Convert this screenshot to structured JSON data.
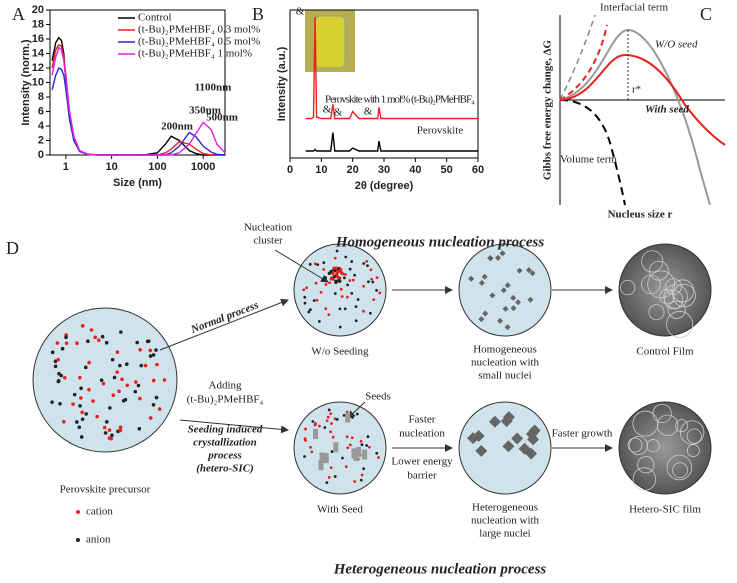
{
  "chart_data": [
    {
      "type": "line",
      "panel": "A",
      "xlabel": "Size (nm)",
      "ylabel": "Intensity (norm.)",
      "log_x": true,
      "x": [
        0.5,
        0.6,
        0.7,
        0.8,
        0.9,
        1,
        1.2,
        1.5,
        2,
        3,
        5,
        10,
        50,
        100,
        150,
        200,
        300,
        500,
        700,
        1000,
        1500,
        2000,
        3000
      ],
      "series": [
        {
          "name": "Control",
          "color": "#000000",
          "values": [
            13,
            15.5,
            16.2,
            15.8,
            14,
            10,
            5,
            2,
            0.5,
            0.1,
            0,
            0,
            0,
            0.3,
            1.5,
            2.6,
            2,
            0.6,
            0.2,
            0,
            0,
            0,
            0
          ]
        },
        {
          "name": "(t-Bu)₂PMeHBF₄ 0.3 mol%",
          "color": "#e8201e",
          "values": [
            12,
            14.5,
            15.2,
            15,
            13.5,
            11,
            6,
            2.5,
            0.6,
            0.1,
            0,
            0,
            0,
            0,
            0.3,
            0.8,
            1.8,
            1.5,
            0.8,
            0.2,
            0,
            0,
            0
          ]
        },
        {
          "name": "(t-Bu)₂PMeHBF₄ 0.5 mol%",
          "color": "#2a2ad8",
          "values": [
            9,
            11,
            12,
            11.8,
            11,
            9,
            5,
            2,
            0.5,
            0.1,
            0,
            0,
            0,
            0,
            0,
            0.3,
            1.2,
            3.1,
            2.5,
            1.2,
            0.4,
            0.1,
            0
          ]
        },
        {
          "name": "(t-Bu)₂PMeHBF₄ 1 mol%",
          "color": "#e020e0",
          "values": [
            11,
            13.5,
            14.8,
            14.5,
            13,
            10.5,
            6,
            2.5,
            0.6,
            0.1,
            0,
            0,
            0,
            0,
            0,
            0,
            0.3,
            1.5,
            3,
            4.5,
            3.5,
            1.5,
            0.3
          ]
        }
      ],
      "annotations": [
        "200nm",
        "350nm",
        "500nm",
        "1100nm"
      ],
      "xlim": [
        0.45,
        3000
      ],
      "xticks": [
        1,
        10,
        100,
        1000
      ],
      "ylim": [
        0,
        20
      ],
      "yticks": [
        0,
        2,
        4,
        6,
        8,
        10,
        12,
        14,
        16,
        18,
        20
      ]
    },
    {
      "type": "line",
      "panel": "B",
      "xlabel": "2θ (degree)",
      "ylabel": "Intensity (a.u.)",
      "x": [
        5,
        7,
        7.5,
        8,
        8.5,
        10,
        13,
        13.7,
        14.3,
        16,
        19,
        20,
        22,
        24,
        26,
        28,
        28.4,
        29,
        32,
        35,
        40,
        45,
        50,
        55,
        60
      ],
      "series": [
        {
          "name": "Perovskite with 1 mol% (t-Bu)₂PMeHBF₄",
          "color": "#e8201e",
          "values": [
            28,
            28,
            29,
            100,
            29,
            28,
            28,
            38,
            28,
            28,
            28,
            33,
            28,
            28,
            28,
            28,
            36,
            28,
            28,
            28,
            28,
            28,
            28,
            28,
            28
          ]
        },
        {
          "name": "Perovskite",
          "color": "#000000",
          "values": [
            5,
            5,
            5,
            6,
            5,
            5,
            5,
            18,
            5,
            5,
            5,
            7,
            5,
            5,
            5,
            5,
            12,
            5,
            5,
            5,
            5,
            5,
            5,
            5,
            5
          ]
        }
      ],
      "annotations": [
        "&",
        "&",
        "&",
        "&"
      ],
      "xlim": [
        0,
        60
      ],
      "xticks": [
        0,
        10,
        20,
        30,
        40,
        50,
        60
      ],
      "ylim": [
        0,
        105
      ]
    }
  ],
  "panel_c": {
    "label": "C",
    "ylabel": "Gibbs free energy change, ΔG",
    "xlabel": "Nucleus size r",
    "texts": [
      "Interfacial term",
      "W/O seed",
      "r*",
      "With seed",
      "Volume term"
    ]
  },
  "panel_d": {
    "label": "D",
    "top_title": "Homogeneous nucleation process",
    "bottom_title": "Heterogeneous nucleation process",
    "precursor": "Perovskite precursor",
    "cation": "cation",
    "anion": "anion",
    "normal": "Normal process",
    "cluster": [
      "Nucleation",
      "cluster"
    ],
    "adding": [
      "Adding",
      "(t-Bu)₂PMeHBF₄"
    ],
    "sic": [
      "Seeding induced",
      "crystallization",
      "process",
      "(hetero-SIC)"
    ],
    "wo_seeding": "W/o Seeding",
    "with_seed": "With Seed",
    "seeds": "Seeds",
    "homo": [
      "Homogeneous",
      "nucleation with",
      "small nuclei"
    ],
    "hetero": [
      "Heterogeneous",
      "nucleation with",
      "large nuclei"
    ],
    "faster_nucleation": [
      "Faster",
      "nucleation"
    ],
    "lower_barrier": [
      "Lower energy",
      "barrier"
    ],
    "faster_growth": "Faster growth",
    "control_film": "Control Film",
    "sic_film": "Hetero-SIC film"
  }
}
